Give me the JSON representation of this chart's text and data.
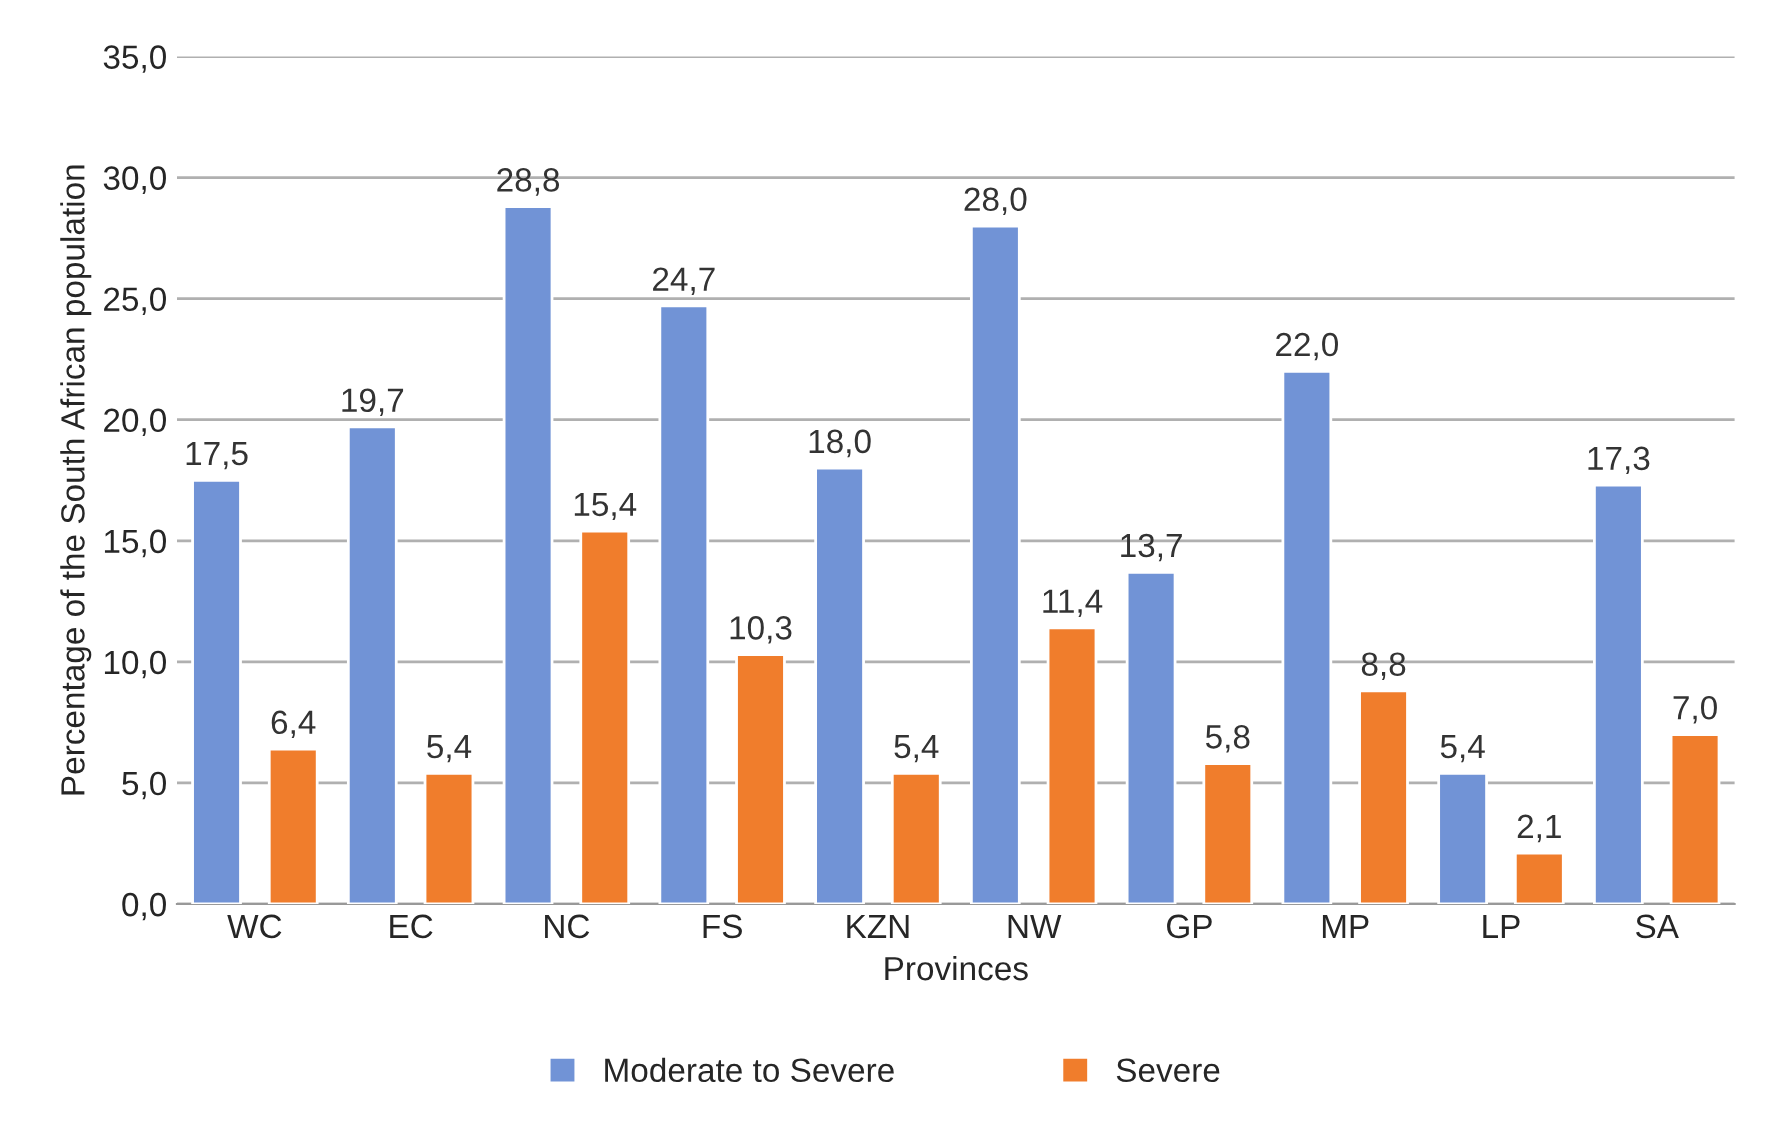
{
  "chart_data": {
    "type": "bar",
    "xlabel": "Provinces",
    "ylabel": "Percentage of the South African population",
    "categories": [
      "WC",
      "EC",
      "NC",
      "FS",
      "KZN",
      "NW",
      "GP",
      "MP",
      "LP",
      "SA"
    ],
    "series": [
      {
        "name": "Moderate to Severe",
        "color": "#7193d6",
        "values": [
          17.5,
          19.7,
          28.8,
          24.7,
          18.0,
          28.0,
          13.7,
          22.0,
          5.4,
          17.3
        ],
        "value_labels": [
          "17,5",
          "19,7",
          "28,8",
          "24,7",
          "18,0",
          "28,0",
          "13,7",
          "22,0",
          "5,4",
          "17,3"
        ]
      },
      {
        "name": "Severe",
        "color": "#f07d2c",
        "values": [
          6.4,
          5.4,
          15.4,
          10.3,
          5.4,
          11.4,
          5.8,
          8.8,
          2.1,
          7.0
        ],
        "value_labels": [
          "6,4",
          "5,4",
          "15,4",
          "10,3",
          "5,4",
          "11,4",
          "5,8",
          "8,8",
          "2,1",
          "7,0"
        ]
      }
    ],
    "ylim": [
      0,
      35
    ],
    "yticks": [
      {
        "value": 0,
        "label": "0,0"
      },
      {
        "value": 5,
        "label": "5,0"
      },
      {
        "value": 10,
        "label": "10,0"
      },
      {
        "value": 15,
        "label": "15,0"
      },
      {
        "value": 20,
        "label": "20,0"
      },
      {
        "value": 25,
        "label": "25,0"
      },
      {
        "value": 30,
        "label": "30,0"
      },
      {
        "value": 35,
        "label": "35,0"
      }
    ],
    "grid": "y",
    "legend": "bottom"
  }
}
